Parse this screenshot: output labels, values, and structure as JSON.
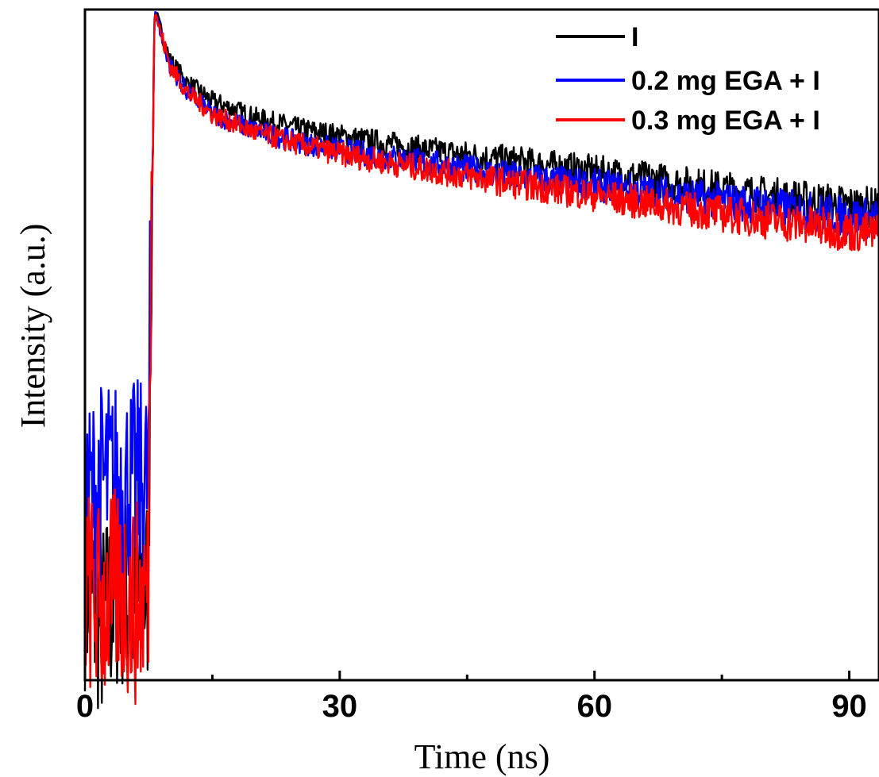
{
  "chart_data": {
    "type": "line",
    "title": "",
    "xlabel": "Time (ns)",
    "ylabel": "Intensity (a.u.)",
    "xlim": [
      0,
      93.5
    ],
    "ylim": [
      0,
      1.0
    ],
    "yscale": "log",
    "y_tick_labels_shown": false,
    "x_ticks": [
      0,
      30,
      60,
      90
    ],
    "x_tick_labels": [
      "0",
      "30",
      "60",
      "90"
    ],
    "legend_position": "top-right",
    "grid": false,
    "series": [
      {
        "name": "I",
        "color": "#000000",
        "x": [
          0,
          2,
          4,
          6,
          7.5,
          8.0,
          8.2,
          9,
          10,
          12,
          15,
          20,
          25,
          30,
          40,
          50,
          60,
          70,
          80,
          90,
          93.5
        ],
        "y": [
          0.06,
          0.05,
          0.06,
          0.055,
          0.06,
          0.5,
          1.0,
          0.9,
          0.78,
          0.7,
          0.64,
          0.59,
          0.56,
          0.54,
          0.505,
          0.48,
          0.455,
          0.43,
          0.405,
          0.385,
          0.38
        ]
      },
      {
        "name": "0.2 mg EGA + I",
        "color": "#0000ff",
        "x": [
          0,
          2,
          4,
          6,
          7.5,
          8.0,
          8.2,
          9,
          10,
          12,
          15,
          20,
          25,
          30,
          40,
          50,
          60,
          70,
          80,
          90,
          93.5
        ],
        "y": [
          0.09,
          0.1,
          0.1,
          0.1,
          0.1,
          0.5,
          1.0,
          0.88,
          0.76,
          0.67,
          0.6,
          0.555,
          0.525,
          0.505,
          0.475,
          0.445,
          0.425,
          0.405,
          0.385,
          0.365,
          0.36
        ]
      },
      {
        "name": "0.3 mg EGA + I",
        "color": "#ff0000",
        "x": [
          0,
          2,
          4,
          6,
          7.5,
          8.0,
          8.2,
          9,
          10,
          12,
          15,
          20,
          25,
          30,
          40,
          50,
          60,
          70,
          80,
          90,
          93.5
        ],
        "y": [
          0.06,
          0.055,
          0.06,
          0.055,
          0.06,
          0.5,
          1.0,
          0.88,
          0.76,
          0.67,
          0.6,
          0.55,
          0.52,
          0.495,
          0.46,
          0.43,
          0.405,
          0.38,
          0.36,
          0.34,
          0.335
        ]
      }
    ]
  }
}
